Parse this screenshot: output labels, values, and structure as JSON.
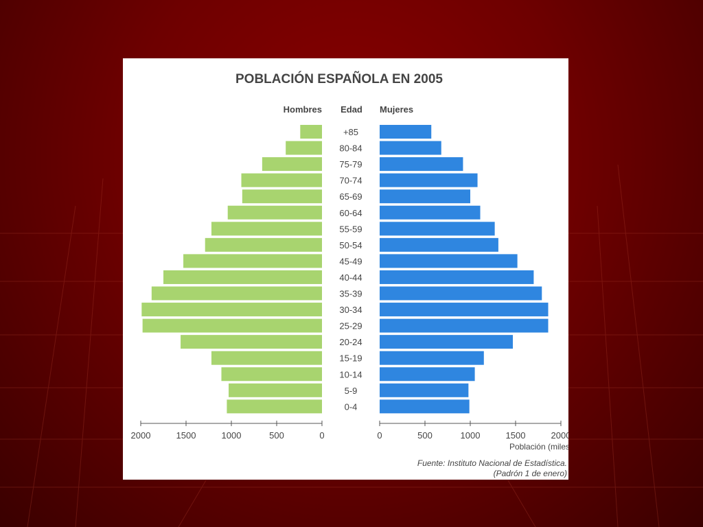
{
  "chart_data": {
    "type": "bar",
    "title": "POBLACIÓN ESPAÑOLA EN 2005",
    "left_header": "Hombres",
    "center_header": "Edad",
    "right_header": "Mujeres",
    "categories": [
      "+85",
      "80-84",
      "75-79",
      "70-74",
      "65-69",
      "60-64",
      "55-59",
      "50-54",
      "45-49",
      "40-44",
      "35-39",
      "30-34",
      "25-29",
      "20-24",
      "15-19",
      "10-14",
      "5-9",
      "0-4"
    ],
    "series": [
      {
        "name": "Hombres",
        "color": "#a8d46f",
        "values": [
          240,
          400,
          660,
          890,
          880,
          1040,
          1220,
          1290,
          1530,
          1750,
          1880,
          1990,
          1980,
          1560,
          1220,
          1110,
          1030,
          1050
        ]
      },
      {
        "name": "Mujeres",
        "color": "#2f86e0",
        "values": [
          570,
          680,
          920,
          1080,
          1000,
          1110,
          1270,
          1310,
          1520,
          1700,
          1790,
          1860,
          1860,
          1470,
          1150,
          1050,
          980,
          990
        ]
      }
    ],
    "left_axis": {
      "ticks": [
        2000,
        1500,
        1000,
        500,
        0
      ],
      "range": [
        0,
        2000
      ]
    },
    "right_axis": {
      "ticks": [
        0,
        500,
        1000,
        1500,
        2000
      ],
      "range": [
        0,
        2000
      ]
    },
    "xlabel": "Población (miles",
    "source_line1": "Fuente: Instituto Nacional de Estadística.",
    "source_line2": "(Padrón 1 de enero)"
  }
}
